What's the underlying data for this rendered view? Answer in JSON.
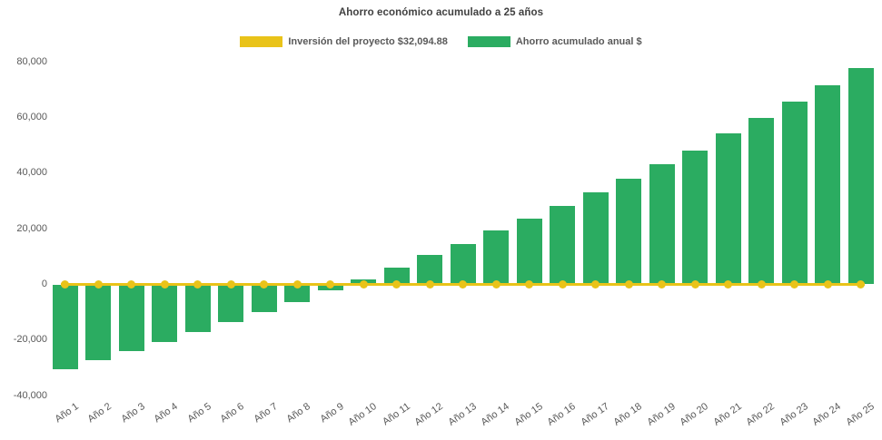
{
  "chart_data": {
    "type": "bar",
    "title": "Ahorro económico acumulado a 25 años",
    "categories": [
      "Año 1",
      "Año 2",
      "Año 3",
      "Año 4",
      "Año 5",
      "Año 6",
      "Año 7",
      "Año 8",
      "Año 9",
      "Año 10",
      "Año 11",
      "Año 12",
      "Año 13",
      "Año 14",
      "Año 15",
      "Año 16",
      "Año 17",
      "Año 18",
      "Año 19",
      "Año 20",
      "Año 21",
      "Año 22",
      "Año 23",
      "Año 24",
      "Año 25"
    ],
    "series": [
      {
        "name": "Inversión del proyecto $32,094.88",
        "render_as": "line",
        "color": "#E9C319",
        "marker": "circle",
        "values": [
          0,
          0,
          0,
          0,
          0,
          0,
          0,
          0,
          0,
          0,
          0,
          0,
          0,
          0,
          0,
          0,
          0,
          0,
          0,
          0,
          0,
          0,
          0,
          0,
          0
        ]
      },
      {
        "name": "Ahorro acumulado anual $",
        "render_as": "bar",
        "color": "#2BAC61",
        "values": [
          -30200,
          -27100,
          -23900,
          -20500,
          -17000,
          -13400,
          -9800,
          -6200,
          -2100,
          1700,
          5900,
          10400,
          14500,
          19200,
          23600,
          28000,
          33100,
          37800,
          43200,
          48100,
          54000,
          59600,
          65500,
          71500,
          77700
        ]
      }
    ],
    "xlabel": "",
    "ylabel": "",
    "ylim": [
      -40000,
      80000
    ],
    "yticks": [
      {
        "value": 80000,
        "label": "80,000"
      },
      {
        "value": 60000,
        "label": "60,000"
      },
      {
        "value": 40000,
        "label": "40,000"
      },
      {
        "value": 20000,
        "label": "20,000"
      },
      {
        "value": 0,
        "label": "0"
      },
      {
        "value": -20000,
        "label": "-20,000"
      },
      {
        "value": -40000,
        "label": "-40,000"
      }
    ],
    "grid": false,
    "legend_position": "top-center",
    "x_label_rotation_deg": -35,
    "colors": {
      "background": "#FFFFFF",
      "title_text": "#404040",
      "axis_text": "#595959",
      "legend_text": "#595959"
    }
  }
}
